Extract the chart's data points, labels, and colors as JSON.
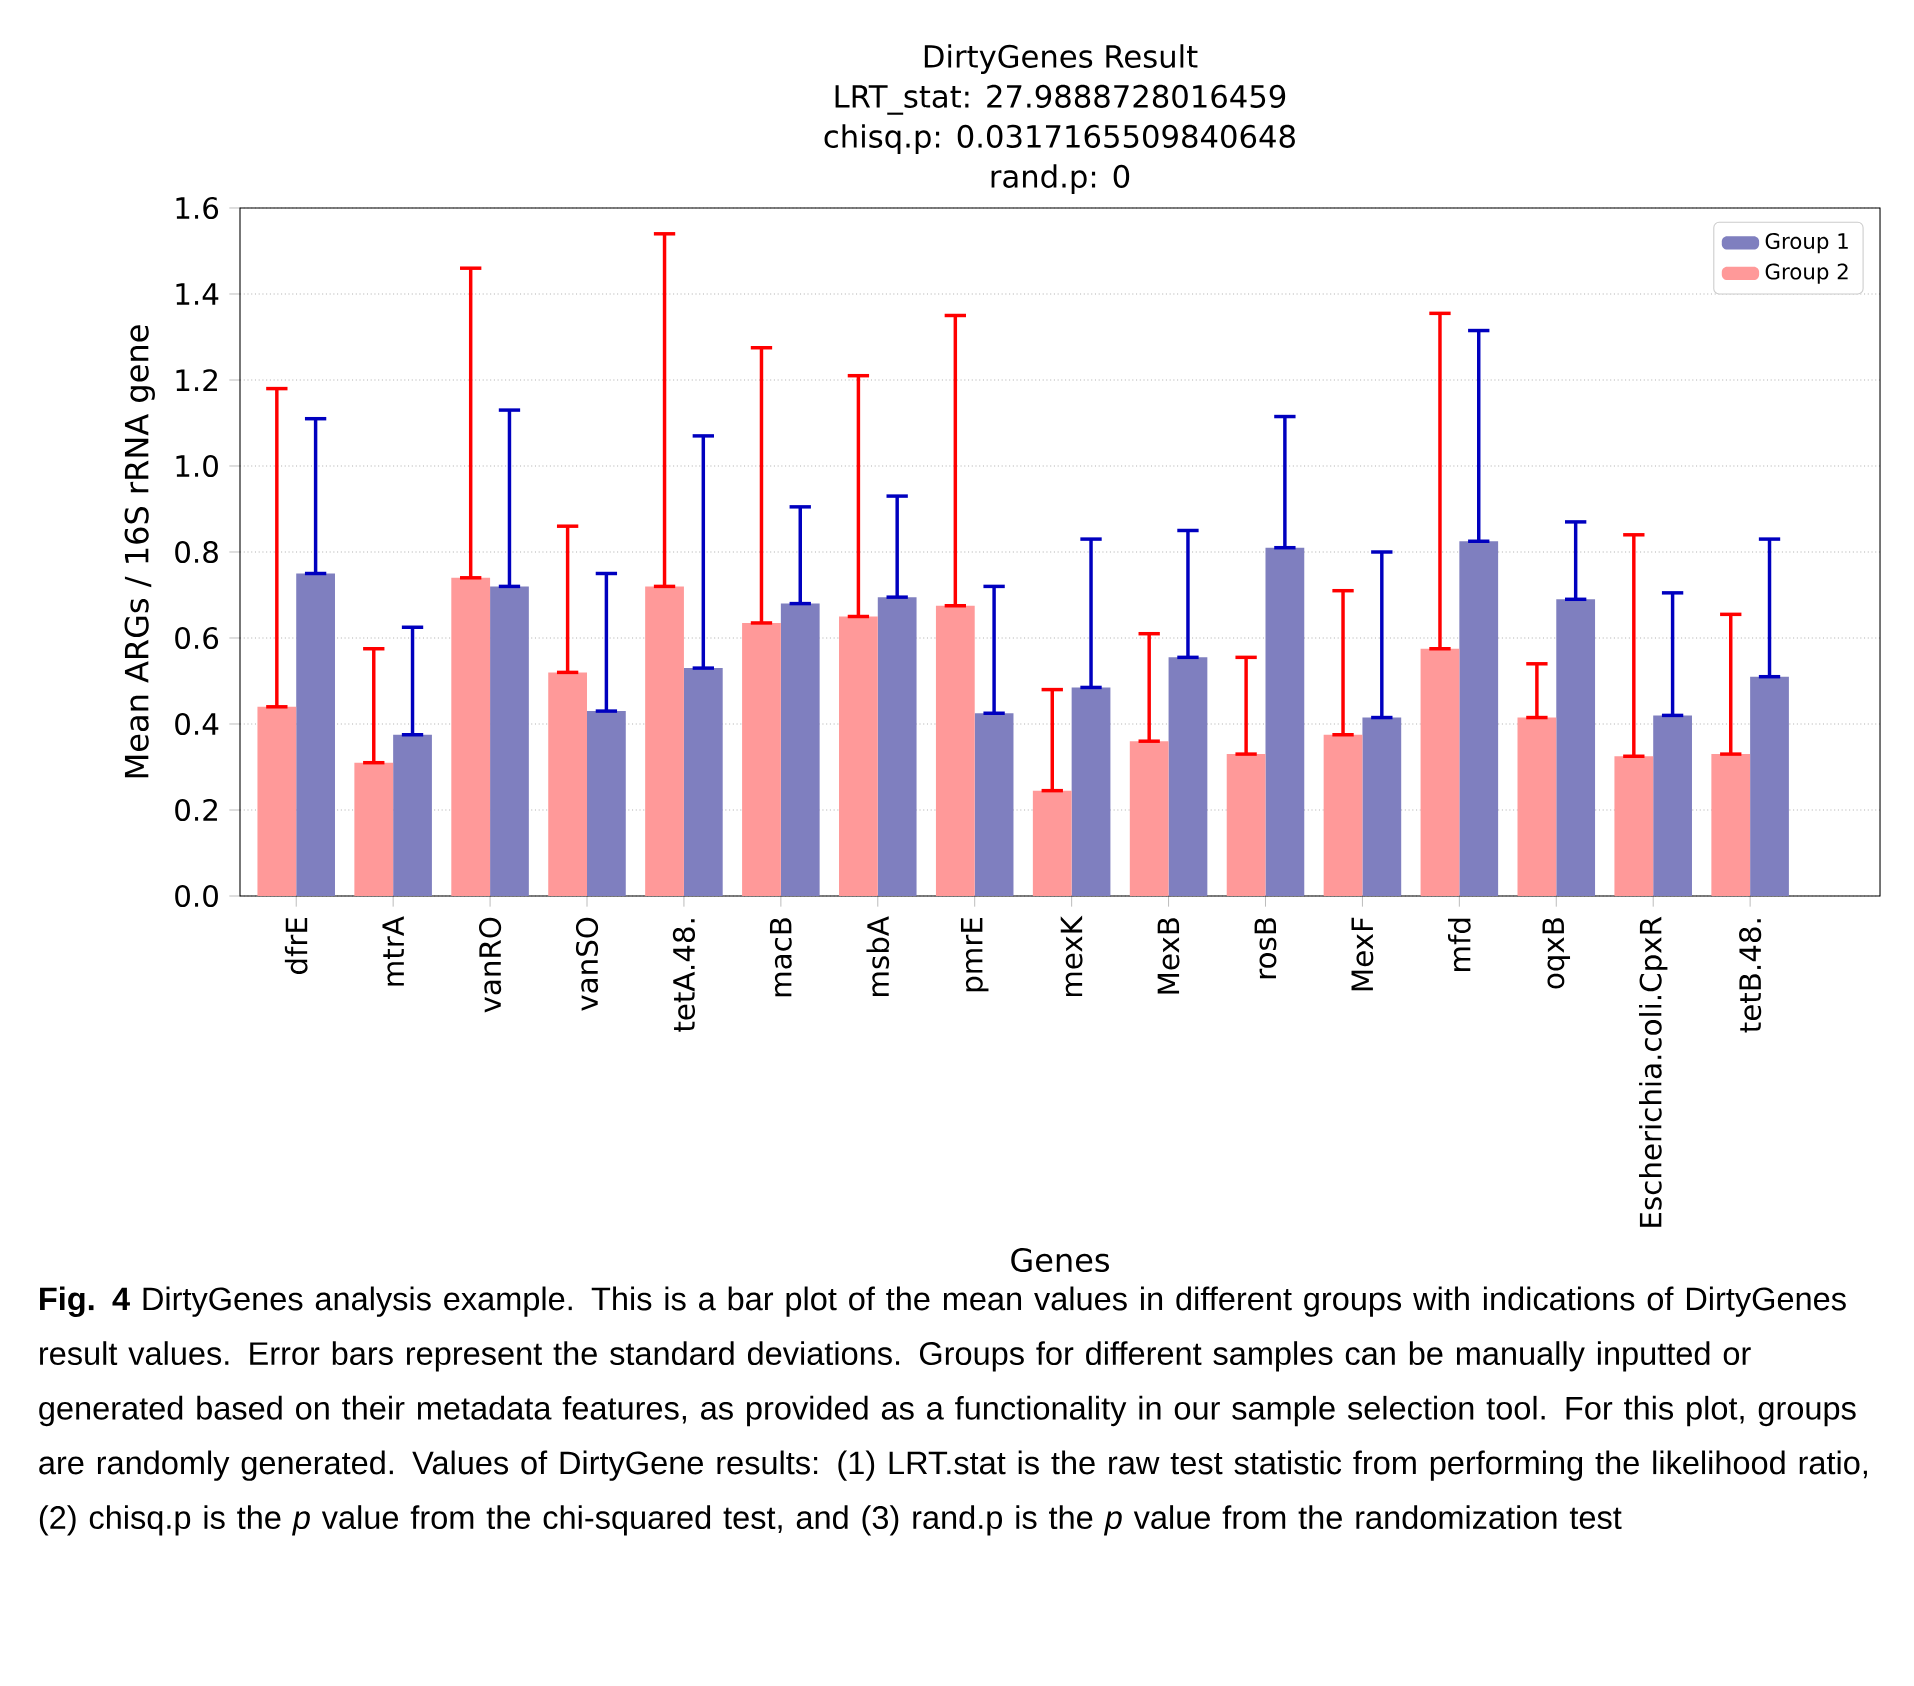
{
  "chart_data": {
    "type": "bar",
    "title": "DirtyGenes Result",
    "xlabel": "Genes",
    "ylabel": "Mean ARGs / 16S rRNA gene",
    "categories": [
      "dfrE",
      "mtrA",
      "vanRO",
      "vanSO",
      "tetA.48.",
      "macB",
      "msbA",
      "pmrE",
      "mexK",
      "MexB",
      "rosB",
      "MexF",
      "mfd",
      "oqxB",
      "Escherichia.coli.CpxR",
      "tetB.48."
    ],
    "series": [
      {
        "name": "Group 1",
        "color": "#7f7fbf",
        "values": [
          0.75,
          0.375,
          0.72,
          0.43,
          0.53,
          0.68,
          0.695,
          0.425,
          0.485,
          0.555,
          0.81,
          0.415,
          0.825,
          0.69,
          0.42,
          0.51
        ],
        "errors": [
          [
            0.75,
            1.11
          ],
          [
            0.375,
            0.625
          ],
          [
            0.72,
            1.13
          ],
          [
            0.43,
            0.75
          ],
          [
            0.53,
            1.07
          ],
          [
            0.68,
            0.905
          ],
          [
            0.695,
            0.93
          ],
          [
            0.425,
            0.72
          ],
          [
            0.485,
            0.83
          ],
          [
            0.555,
            0.85
          ],
          [
            0.81,
            1.115
          ],
          [
            0.415,
            0.8
          ],
          [
            0.825,
            1.315
          ],
          [
            0.69,
            0.87
          ],
          [
            0.42,
            0.705
          ],
          [
            0.51,
            0.83
          ]
        ]
      },
      {
        "name": "Group 2",
        "color": "#ff9999",
        "values": [
          0.44,
          0.31,
          0.74,
          0.52,
          0.72,
          0.635,
          0.65,
          0.675,
          0.245,
          0.36,
          0.33,
          0.375,
          0.575,
          0.415,
          0.325,
          0.33
        ],
        "errors": [
          [
            0.44,
            1.18
          ],
          [
            0.31,
            0.575
          ],
          [
            0.74,
            1.46
          ],
          [
            0.52,
            0.86
          ],
          [
            0.72,
            1.54
          ],
          [
            0.635,
            1.275
          ],
          [
            0.65,
            1.21
          ],
          [
            0.675,
            1.35
          ],
          [
            0.245,
            0.48
          ],
          [
            0.36,
            0.61
          ],
          [
            0.33,
            0.555
          ],
          [
            0.375,
            0.71
          ],
          [
            0.575,
            1.355
          ],
          [
            0.415,
            0.54
          ],
          [
            0.325,
            0.84
          ],
          [
            0.33,
            0.655
          ]
        ]
      }
    ],
    "ylim": [
      0,
      1.6
    ],
    "yticks": [
      {
        "value": 0,
        "label": "0.0"
      },
      0.2,
      0.4,
      0.6,
      0.8,
      {
        "value": 1,
        "label": "1.0"
      },
      1.2,
      1.4,
      1.6
    ],
    "grid": "y",
    "legend": "top right",
    "annotations": [
      "LRT_stat: 27.9888728016459",
      "chisq.p: 0.0317165509840648",
      "rand.p: 0",
      "**Fig. 4** DirtyGenes analysis example. This is a bar plot of the mean values in different groups with indications of DirtyGenes result values. Error bars represent the standard deviations. Groups for different samples can be manually inputted or generated based on their metadata features, as provided as a functionality in our sample selection tool. For this plot, groups are randomly generated. Values of DirtyGene results: (1) LRT.stat is the raw test statistic from performing the likelihood ratio, (2) chisq.p is the *p* value from the chi-squared test, and (3) rand.p is the *p* value from the randomization test"
    ]
  }
}
